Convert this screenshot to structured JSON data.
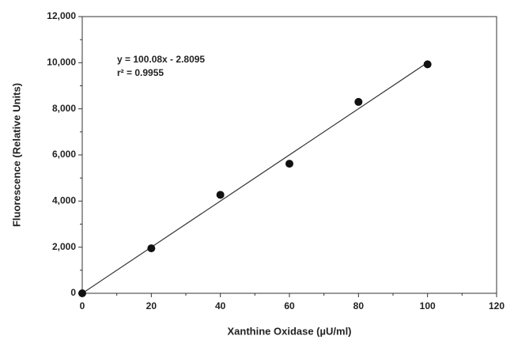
{
  "chart_data": {
    "type": "scatter",
    "x_label": "Xanthine Oxidase (µU/ml)",
    "y_label": "Fluorescence (Relative Units)",
    "annotations": [
      "y = 100.08x - 2.8095",
      "r² = 0.9955"
    ],
    "x": [
      0,
      20,
      40,
      60,
      80,
      100
    ],
    "values": [
      0,
      1950,
      4270,
      5620,
      8300,
      9930
    ],
    "color": "#111111",
    "fit": {
      "slope": 100.08,
      "intercept": -2.8095,
      "xrange": [
        0,
        100
      ],
      "color": "#333333"
    },
    "xlim": [
      0,
      120
    ],
    "xticks": [
      0,
      20,
      40,
      60,
      80,
      100,
      120
    ],
    "ylim": [
      0,
      12000
    ],
    "yticks": [
      0,
      {
        "value": 2000,
        "label": "2,000"
      },
      {
        "value": 4000,
        "label": "4,000"
      },
      {
        "value": 6000,
        "label": "6,000"
      },
      {
        "value": 8000,
        "label": "8,000"
      },
      {
        "value": 10000,
        "label": "10,000"
      },
      {
        "value": 12000,
        "label": "12,000"
      }
    ]
  }
}
